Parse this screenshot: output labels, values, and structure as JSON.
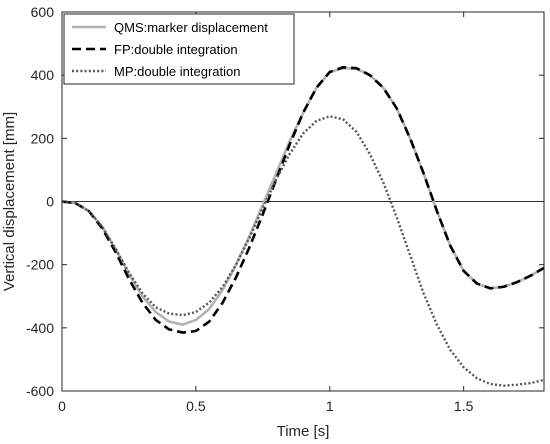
{
  "chart_data": {
    "type": "line",
    "title": "",
    "xlabel": "Time [s]",
    "ylabel": "Vertical displacement [mm]",
    "xlim": [
      0,
      1.8
    ],
    "ylim": [
      -600,
      600
    ],
    "xticks": [
      0,
      0.5,
      1,
      1.5
    ],
    "xtick_labels": [
      "0",
      "0.5",
      "1",
      "1.5"
    ],
    "yticks": [
      -600,
      -400,
      -200,
      0,
      200,
      400,
      600
    ],
    "ytick_labels": [
      "-600",
      "-400",
      "-200",
      "0",
      "200",
      "400",
      "600"
    ],
    "grid": false,
    "zero_line": true,
    "legend_position": "top-left",
    "series": [
      {
        "name": "QMS:marker displacement",
        "color": "#b3b3b3",
        "style": "solid",
        "x": [
          0,
          0.05,
          0.1,
          0.15,
          0.2,
          0.25,
          0.3,
          0.35,
          0.4,
          0.45,
          0.5,
          0.55,
          0.6,
          0.65,
          0.7,
          0.75,
          0.8,
          0.85,
          0.9,
          0.95,
          1.0,
          1.05,
          1.1,
          1.15,
          1.2,
          1.25,
          1.3,
          1.35,
          1.4,
          1.45,
          1.5,
          1.55,
          1.6,
          1.65,
          1.7,
          1.75,
          1.8
        ],
        "y": [
          0,
          -5,
          -30,
          -80,
          -150,
          -230,
          -300,
          -350,
          -380,
          -390,
          -375,
          -340,
          -280,
          -200,
          -110,
          -10,
          90,
          190,
          280,
          360,
          410,
          422,
          420,
          400,
          360,
          295,
          200,
          90,
          -30,
          -140,
          -220,
          -260,
          -275,
          -270,
          -255,
          -235,
          -210
        ]
      },
      {
        "name": "FP:double integration",
        "color": "#000000",
        "style": "dashed",
        "x": [
          0,
          0.05,
          0.1,
          0.15,
          0.2,
          0.25,
          0.3,
          0.35,
          0.4,
          0.45,
          0.5,
          0.55,
          0.6,
          0.65,
          0.7,
          0.75,
          0.8,
          0.85,
          0.9,
          0.95,
          1.0,
          1.05,
          1.1,
          1.15,
          1.2,
          1.25,
          1.3,
          1.35,
          1.4,
          1.45,
          1.5,
          1.55,
          1.6,
          1.65,
          1.7,
          1.75,
          1.8
        ],
        "y": [
          0,
          -5,
          -30,
          -85,
          -160,
          -245,
          -320,
          -375,
          -405,
          -415,
          -410,
          -380,
          -320,
          -240,
          -145,
          -40,
          70,
          180,
          280,
          360,
          410,
          425,
          422,
          400,
          360,
          295,
          200,
          90,
          -30,
          -140,
          -220,
          -260,
          -275,
          -270,
          -255,
          -235,
          -210
        ]
      },
      {
        "name": "MP:double integration",
        "color": "#555555",
        "style": "dotted",
        "x": [
          0,
          0.05,
          0.1,
          0.15,
          0.2,
          0.25,
          0.3,
          0.35,
          0.4,
          0.45,
          0.5,
          0.55,
          0.6,
          0.65,
          0.7,
          0.75,
          0.8,
          0.85,
          0.9,
          0.95,
          1.0,
          1.05,
          1.1,
          1.15,
          1.2,
          1.25,
          1.3,
          1.35,
          1.4,
          1.45,
          1.5,
          1.55,
          1.6,
          1.65,
          1.7,
          1.75,
          1.8
        ],
        "y": [
          0,
          -5,
          -30,
          -80,
          -150,
          -225,
          -290,
          -335,
          -355,
          -360,
          -350,
          -320,
          -270,
          -200,
          -115,
          -20,
          70,
          150,
          215,
          255,
          270,
          260,
          220,
          150,
          60,
          -50,
          -170,
          -290,
          -390,
          -470,
          -525,
          -560,
          -578,
          -583,
          -580,
          -575,
          -565
        ]
      }
    ]
  }
}
